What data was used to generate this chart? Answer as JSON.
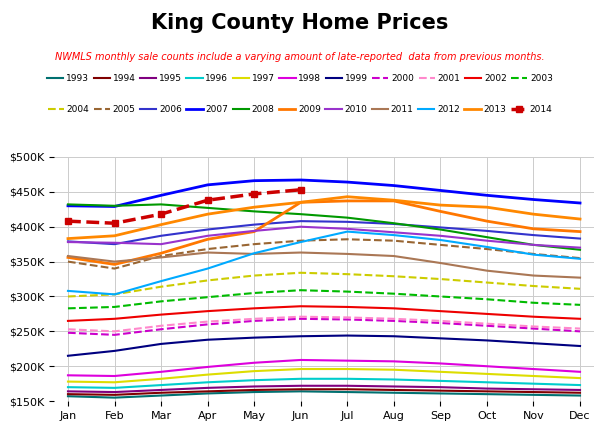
{
  "title": "King County Home Prices",
  "subtitle": "NWMLS monthly sale counts include a varying amount of late-reported  data from previous months.",
  "months": [
    "Jan",
    "Feb",
    "Mar",
    "Apr",
    "May",
    "Jun",
    "Jul",
    "Aug",
    "Sep",
    "Oct",
    "Nov",
    "Dec"
  ],
  "series": [
    {
      "year": "1993",
      "color": "#007070",
      "linestyle": "solid",
      "linewidth": 1.5,
      "data": [
        157000,
        155000,
        158000,
        161000,
        163000,
        164000,
        163000,
        162000,
        161000,
        160000,
        159000,
        158000
      ]
    },
    {
      "year": "1994",
      "color": "#800000",
      "linestyle": "solid",
      "linewidth": 1.5,
      "data": [
        160000,
        159000,
        162000,
        164000,
        166000,
        167000,
        167000,
        166000,
        165000,
        164000,
        163000,
        162000
      ]
    },
    {
      "year": "1995",
      "color": "#800080",
      "linestyle": "solid",
      "linewidth": 1.5,
      "data": [
        164000,
        163000,
        166000,
        169000,
        171000,
        172000,
        172000,
        171000,
        170000,
        168000,
        167000,
        166000
      ]
    },
    {
      "year": "1996",
      "color": "#00cccc",
      "linestyle": "solid",
      "linewidth": 1.5,
      "data": [
        170000,
        169000,
        173000,
        177000,
        180000,
        182000,
        182000,
        181000,
        179000,
        177000,
        175000,
        173000
      ]
    },
    {
      "year": "1997",
      "color": "#dddd00",
      "linestyle": "solid",
      "linewidth": 1.5,
      "data": [
        178000,
        177000,
        182000,
        188000,
        193000,
        196000,
        196000,
        195000,
        192000,
        189000,
        186000,
        183000
      ]
    },
    {
      "year": "1998",
      "color": "#dd00dd",
      "linestyle": "solid",
      "linewidth": 1.5,
      "data": [
        187000,
        186000,
        192000,
        199000,
        205000,
        209000,
        208000,
        207000,
        204000,
        200000,
        196000,
        192000
      ]
    },
    {
      "year": "1999",
      "color": "#000080",
      "linestyle": "solid",
      "linewidth": 1.5,
      "data": [
        215000,
        222000,
        232000,
        238000,
        241000,
        243000,
        244000,
        243000,
        240000,
        237000,
        233000,
        229000
      ]
    },
    {
      "year": "2000",
      "color": "#cc00cc",
      "linestyle": "dashed",
      "linewidth": 1.5,
      "data": [
        248000,
        245000,
        253000,
        260000,
        265000,
        268000,
        267000,
        265000,
        262000,
        258000,
        254000,
        250000
      ]
    },
    {
      "year": "2001",
      "color": "#ff88cc",
      "linestyle": "dashed",
      "linewidth": 1.5,
      "data": [
        253000,
        250000,
        258000,
        264000,
        268000,
        271000,
        270000,
        268000,
        265000,
        261000,
        257000,
        254000
      ]
    },
    {
      "year": "2002",
      "color": "#ee0000",
      "linestyle": "solid",
      "linewidth": 1.5,
      "data": [
        265000,
        268000,
        274000,
        279000,
        283000,
        286000,
        285000,
        283000,
        279000,
        275000,
        271000,
        268000
      ]
    },
    {
      "year": "2003",
      "color": "#00bb00",
      "linestyle": "dashed",
      "linewidth": 1.5,
      "data": [
        283000,
        285000,
        293000,
        299000,
        305000,
        309000,
        307000,
        304000,
        300000,
        296000,
        291000,
        288000
      ]
    },
    {
      "year": "2004",
      "color": "#cccc00",
      "linestyle": "dashed",
      "linewidth": 1.5,
      "data": [
        300000,
        303000,
        314000,
        323000,
        330000,
        334000,
        332000,
        329000,
        325000,
        320000,
        315000,
        311000
      ]
    },
    {
      "year": "2005",
      "color": "#996633",
      "linestyle": "dashed",
      "linewidth": 1.5,
      "data": [
        350000,
        340000,
        358000,
        368000,
        375000,
        380000,
        382000,
        380000,
        374000,
        368000,
        361000,
        355000
      ]
    },
    {
      "year": "2006",
      "color": "#3333cc",
      "linestyle": "solid",
      "linewidth": 1.5,
      "data": [
        379000,
        375000,
        387000,
        396000,
        403000,
        408000,
        407000,
        404000,
        399000,
        394000,
        388000,
        383000
      ]
    },
    {
      "year": "2007",
      "color": "#0000ff",
      "linestyle": "solid",
      "linewidth": 2.0,
      "data": [
        430000,
        429000,
        445000,
        460000,
        466000,
        467000,
        464000,
        459000,
        452000,
        445000,
        439000,
        434000
      ]
    },
    {
      "year": "2008",
      "color": "#009900",
      "linestyle": "solid",
      "linewidth": 1.5,
      "data": [
        432000,
        430000,
        432000,
        427000,
        422000,
        418000,
        413000,
        405000,
        396000,
        385000,
        374000,
        367000
      ]
    },
    {
      "year": "2009",
      "color": "#ff7700",
      "linestyle": "solid",
      "linewidth": 2.0,
      "data": [
        356000,
        346000,
        362000,
        382000,
        393000,
        435000,
        437000,
        437000,
        422000,
        408000,
        397000,
        393000
      ]
    },
    {
      "year": "2010",
      "color": "#9933cc",
      "linestyle": "solid",
      "linewidth": 1.5,
      "data": [
        378000,
        377000,
        375000,
        387000,
        394000,
        400000,
        397000,
        392000,
        387000,
        380000,
        374000,
        370000
      ]
    },
    {
      "year": "2011",
      "color": "#aa7755",
      "linestyle": "solid",
      "linewidth": 1.5,
      "data": [
        358000,
        350000,
        356000,
        363000,
        361000,
        363000,
        361000,
        358000,
        348000,
        337000,
        330000,
        327000
      ]
    },
    {
      "year": "2012",
      "color": "#00aaff",
      "linestyle": "solid",
      "linewidth": 1.5,
      "data": [
        308000,
        303000,
        322000,
        340000,
        362000,
        378000,
        393000,
        388000,
        381000,
        371000,
        360000,
        354000
      ]
    },
    {
      "year": "2013",
      "color": "#ff8800",
      "linestyle": "solid",
      "linewidth": 2.0,
      "data": [
        383000,
        387000,
        403000,
        418000,
        428000,
        435000,
        443000,
        438000,
        431000,
        428000,
        418000,
        411000
      ]
    },
    {
      "year": "2014",
      "color": "#cc0000",
      "linestyle": "dashed",
      "linewidth": 2.5,
      "data": [
        408000,
        405000,
        418000,
        438000,
        447000,
        453000,
        null,
        null,
        null,
        null,
        null,
        null
      ]
    }
  ],
  "ylim": [
    150000,
    500000
  ],
  "yticks": [
    150000,
    200000,
    250000,
    300000,
    350000,
    400000,
    450000,
    500000
  ],
  "ytick_labels": [
    "$150K",
    "$200K",
    "$250K",
    "$300K",
    "$350K",
    "$400K",
    "$450K",
    "$500K"
  ],
  "background_color": "#ffffff",
  "grid_color": "#cccccc",
  "legend_row1": [
    "1993",
    "1994",
    "1995",
    "1996",
    "1997",
    "1998",
    "1999",
    "2000",
    "2001",
    "2002",
    "2003"
  ],
  "legend_row2": [
    "2004",
    "2005",
    "2006",
    "2007",
    "2008",
    "2009",
    "2010",
    "2011",
    "2012",
    "2013",
    "2014"
  ]
}
